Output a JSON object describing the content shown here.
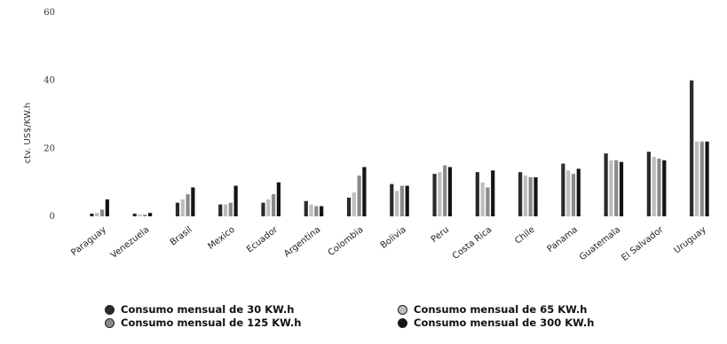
{
  "chart_data": {
    "type": "bar",
    "title": "",
    "xlabel": "",
    "ylabel": "ctv. US$/KW.h",
    "ylim": [
      0,
      60
    ],
    "yticks": [
      "0",
      "20",
      "40",
      "60"
    ],
    "grid": false,
    "legend_position": "bottom",
    "categories": [
      "Paraguay",
      "Venezuela",
      "Brasil",
      "Mexico",
      "Ecuador",
      "Argentina",
      "Colombia",
      "Bolivia",
      "Peru",
      "Costa Rica",
      "Chile",
      "Panama",
      "Guatemala",
      "El Salvador",
      "Uruguay"
    ],
    "series": [
      {
        "name": "Consumo mensual de 30 KW.h",
        "color": "#2a2a2a",
        "values": [
          0.8,
          0.8,
          4,
          3.5,
          4,
          4.5,
          5.5,
          9.5,
          12.5,
          13,
          13,
          15.5,
          18.5,
          19,
          40
        ]
      },
      {
        "name": "Consumo mensual de 65 KW.h",
        "color": "#bdbdbd",
        "values": [
          1,
          0.5,
          5,
          3.5,
          5,
          3.5,
          7,
          7.5,
          13,
          10,
          12,
          13.5,
          16.5,
          17.5,
          22
        ]
      },
      {
        "name": "Consumo mensual de 125 KW.h",
        "color": "#8a8a8a",
        "values": [
          2,
          0.5,
          6.5,
          4,
          6.5,
          3,
          12,
          9,
          15,
          8.5,
          11.5,
          12.5,
          16.5,
          17,
          22
        ]
      },
      {
        "name": "Consumo mensual de 300 KW.h",
        "color": "#141414",
        "values": [
          5,
          1,
          8.5,
          9,
          10,
          3,
          14.5,
          9,
          14.5,
          13.5,
          11.5,
          14,
          16,
          16.5,
          22
        ]
      }
    ]
  }
}
